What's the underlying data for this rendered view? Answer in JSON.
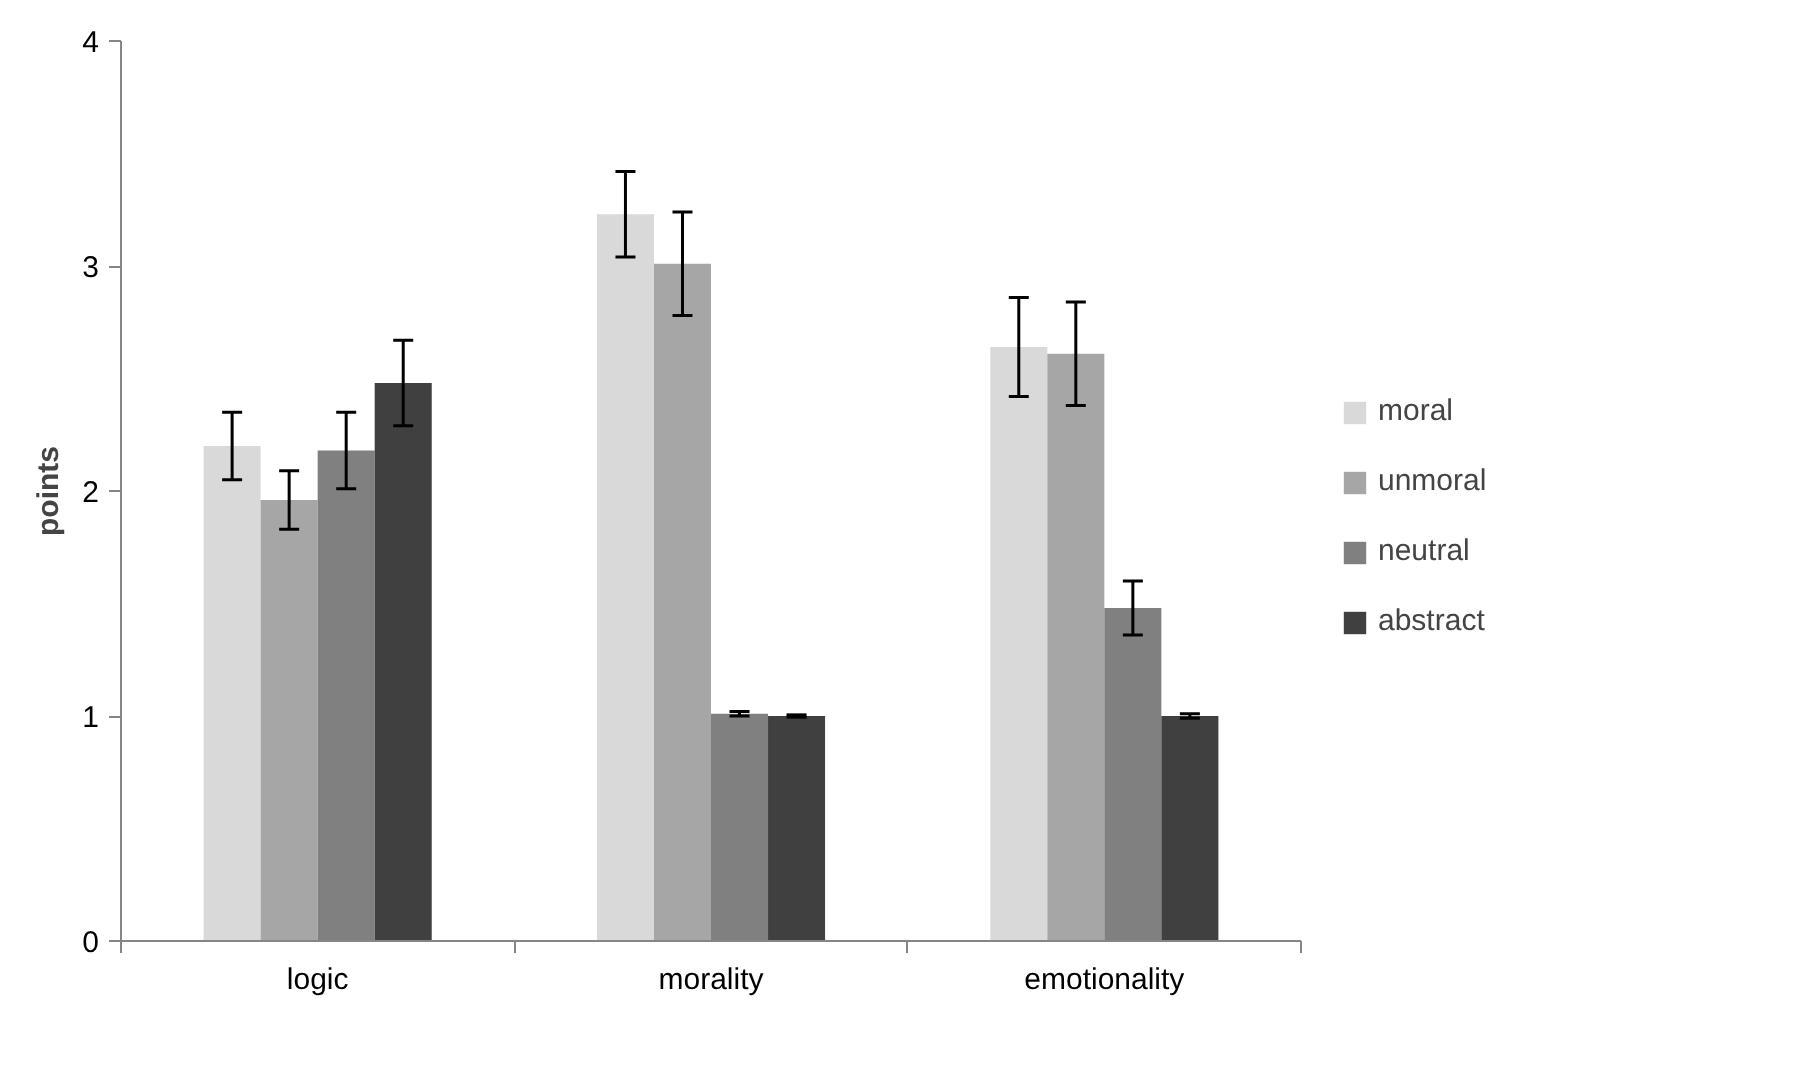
{
  "chart_data": {
    "type": "bar",
    "ylabel": "points",
    "categories": [
      "logic",
      "morality",
      "emotionality"
    ],
    "series": [
      {
        "name": "moral",
        "color": "#d9d9d9",
        "values": [
          2.2,
          3.23,
          2.64
        ],
        "errors": [
          0.15,
          0.19,
          0.22
        ]
      },
      {
        "name": "unmoral",
        "color": "#a6a6a6",
        "values": [
          1.96,
          3.01,
          2.61
        ],
        "errors": [
          0.13,
          0.23,
          0.23
        ]
      },
      {
        "name": "neutral",
        "color": "#808080",
        "values": [
          2.18,
          1.01,
          1.48
        ],
        "errors": [
          0.17,
          0.01,
          0.12
        ]
      },
      {
        "name": "abstract",
        "color": "#404040",
        "values": [
          2.48,
          1.0,
          1.0
        ],
        "errors": [
          0.19,
          0.005,
          0.01
        ]
      }
    ],
    "ylim": [
      0,
      4
    ],
    "yticks": [
      0,
      1,
      2,
      3,
      4
    ],
    "grid": false,
    "legend": "right"
  }
}
